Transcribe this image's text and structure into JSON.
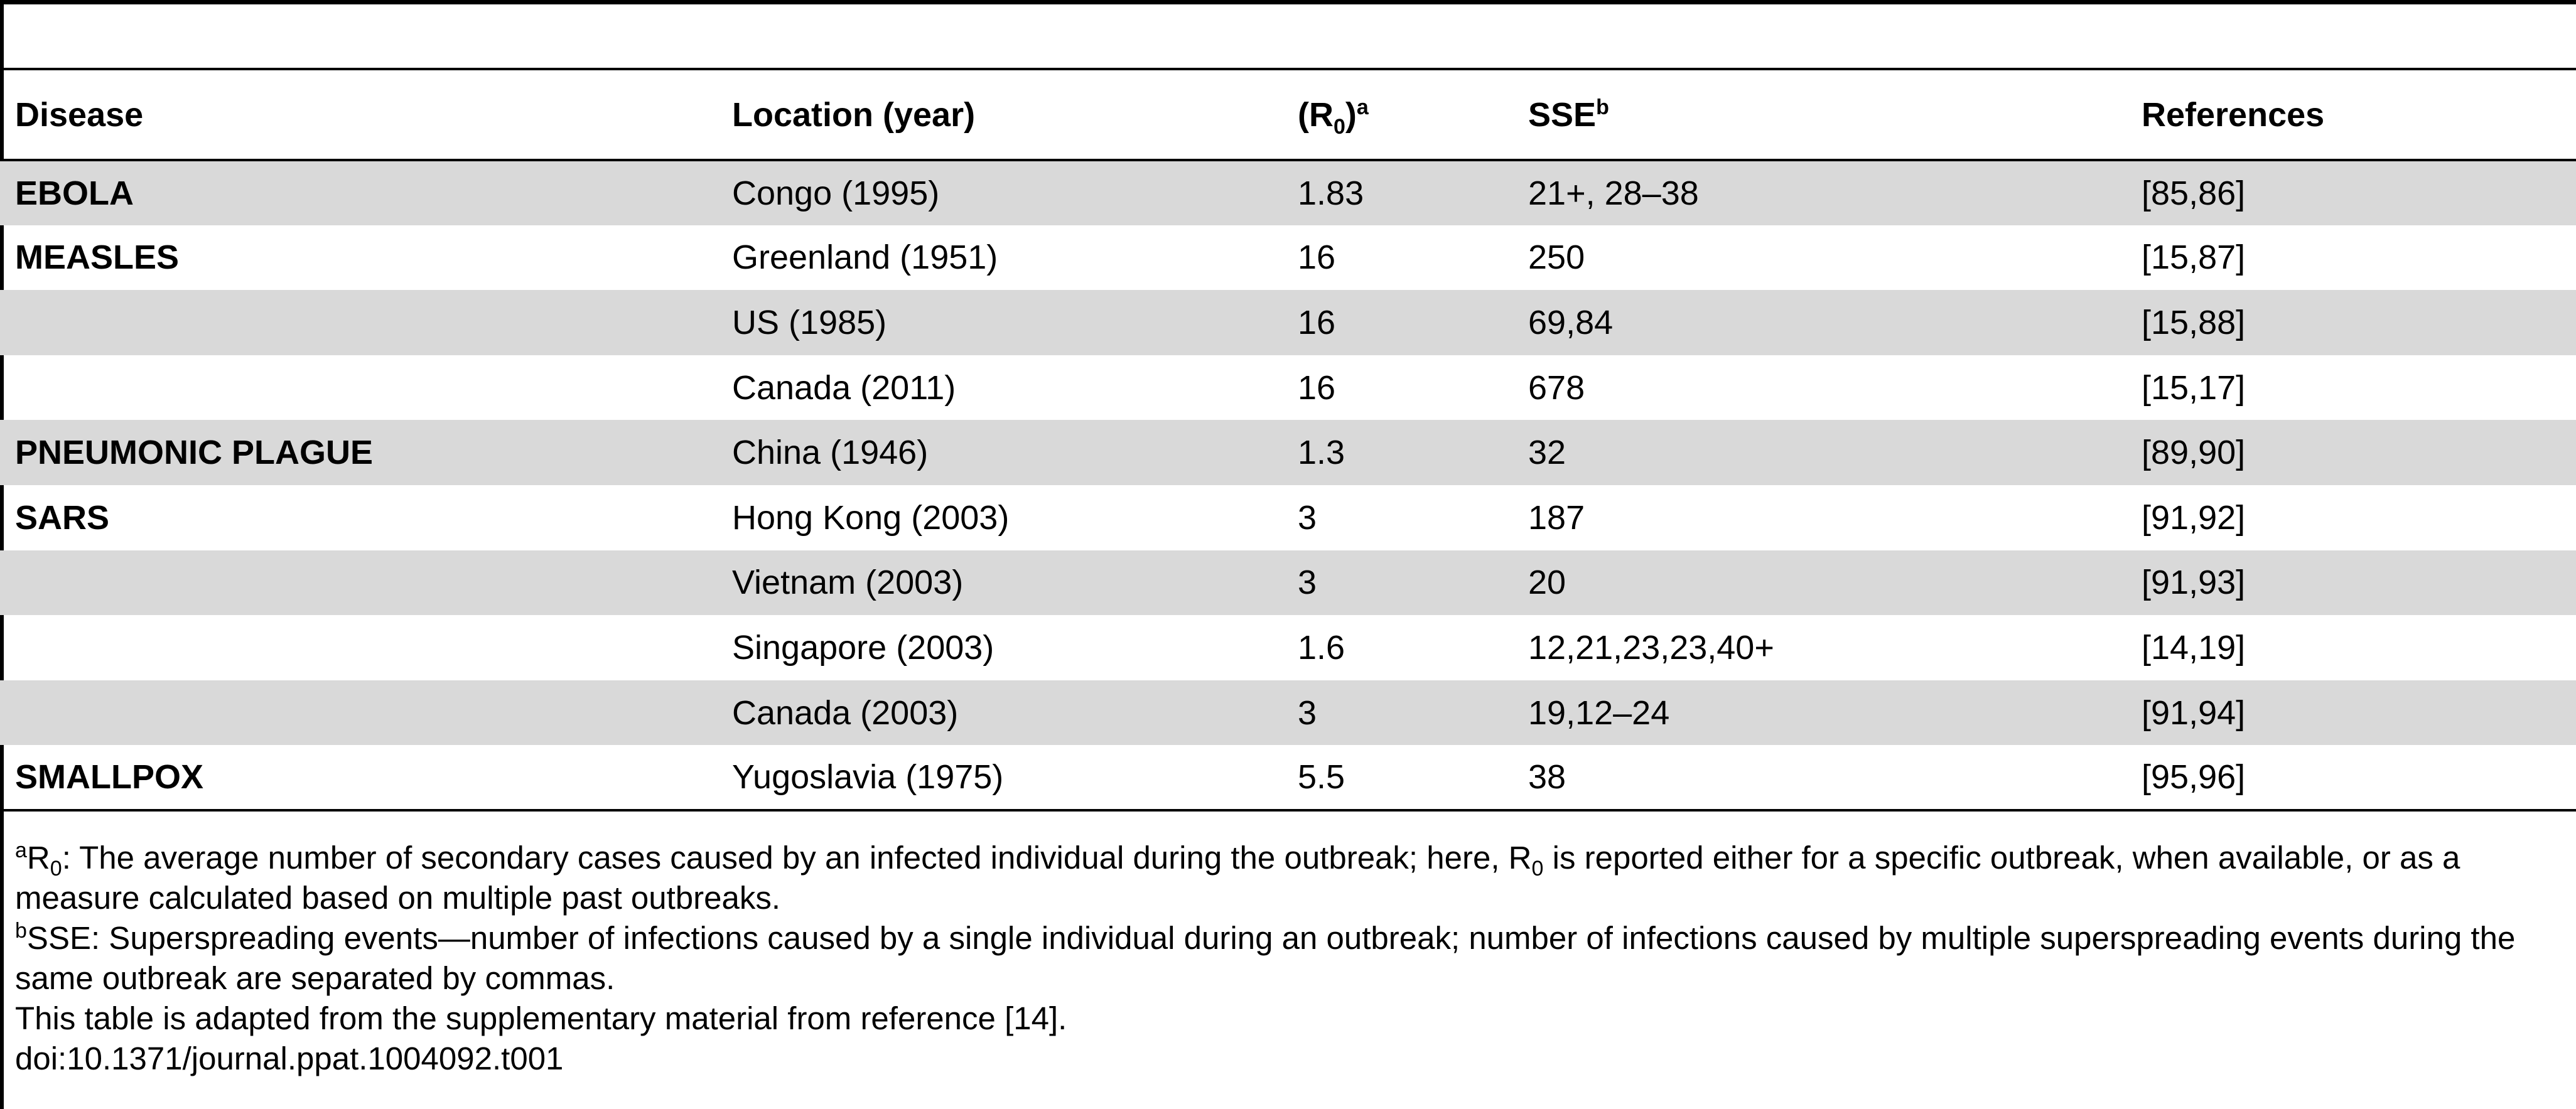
{
  "table": {
    "headers": {
      "disease": "Disease",
      "location": "Location (year)",
      "r0_open": "(R",
      "r0_sub": "0",
      "r0_close": ")",
      "r0_sup": "a",
      "sse": "SSE",
      "sse_sup": "b",
      "references": "References"
    },
    "rows": [
      {
        "disease": "EBOLA",
        "location": "Congo (1995)",
        "r0": "1.83",
        "sse": "21+, 28–38",
        "refs": "[85,86]",
        "shaded": true
      },
      {
        "disease": "MEASLES",
        "location": "Greenland (1951)",
        "r0": "16",
        "sse": "250",
        "refs": "[15,87]",
        "shaded": false
      },
      {
        "disease": "",
        "location": "US (1985)",
        "r0": "16",
        "sse": "69,84",
        "refs": "[15,88]",
        "shaded": true
      },
      {
        "disease": "",
        "location": "Canada (2011)",
        "r0": "16",
        "sse": "678",
        "refs": "[15,17]",
        "shaded": false
      },
      {
        "disease": "PNEUMONIC PLAGUE",
        "location": "China (1946)",
        "r0": "1.3",
        "sse": "32",
        "refs": "[89,90]",
        "shaded": true
      },
      {
        "disease": "SARS",
        "location": "Hong Kong (2003)",
        "r0": "3",
        "sse": "187",
        "refs": "[91,92]",
        "shaded": false
      },
      {
        "disease": "",
        "location": "Vietnam (2003)",
        "r0": "3",
        "sse": "20",
        "refs": "[91,93]",
        "shaded": true
      },
      {
        "disease": "",
        "location": "Singapore (2003)",
        "r0": "1.6",
        "sse": "12,21,23,23,40+",
        "refs": "[14,19]",
        "shaded": false
      },
      {
        "disease": "",
        "location": "Canada (2003)",
        "r0": "3",
        "sse": "19,12–24",
        "refs": "[91,94]",
        "shaded": true
      },
      {
        "disease": "SMALLPOX",
        "location": "Yugoslavia (1975)",
        "r0": "5.5",
        "sse": "38",
        "refs": "[95,96]",
        "shaded": false
      }
    ]
  },
  "footnotes": {
    "a_mark": "a",
    "a_r": "R",
    "a_sub": "0",
    "a_text1": ": The average number of secondary cases caused by an infected individual during the outbreak; here, R",
    "a_sub2": "0",
    "a_text2": " is reported either for a specific outbreak, when available, or as a measure calculated based on multiple past outbreaks.",
    "b_mark": "b",
    "b_text": "SSE: Superspreading events—number of infections caused by a single individual during an outbreak; number of infections caused by multiple superspreading events during the same outbreak are separated by commas.",
    "adapted": "This table is adapted from the supplementary material from reference [14].",
    "doi": "doi:10.1371/journal.ppat.1004092.t001"
  }
}
